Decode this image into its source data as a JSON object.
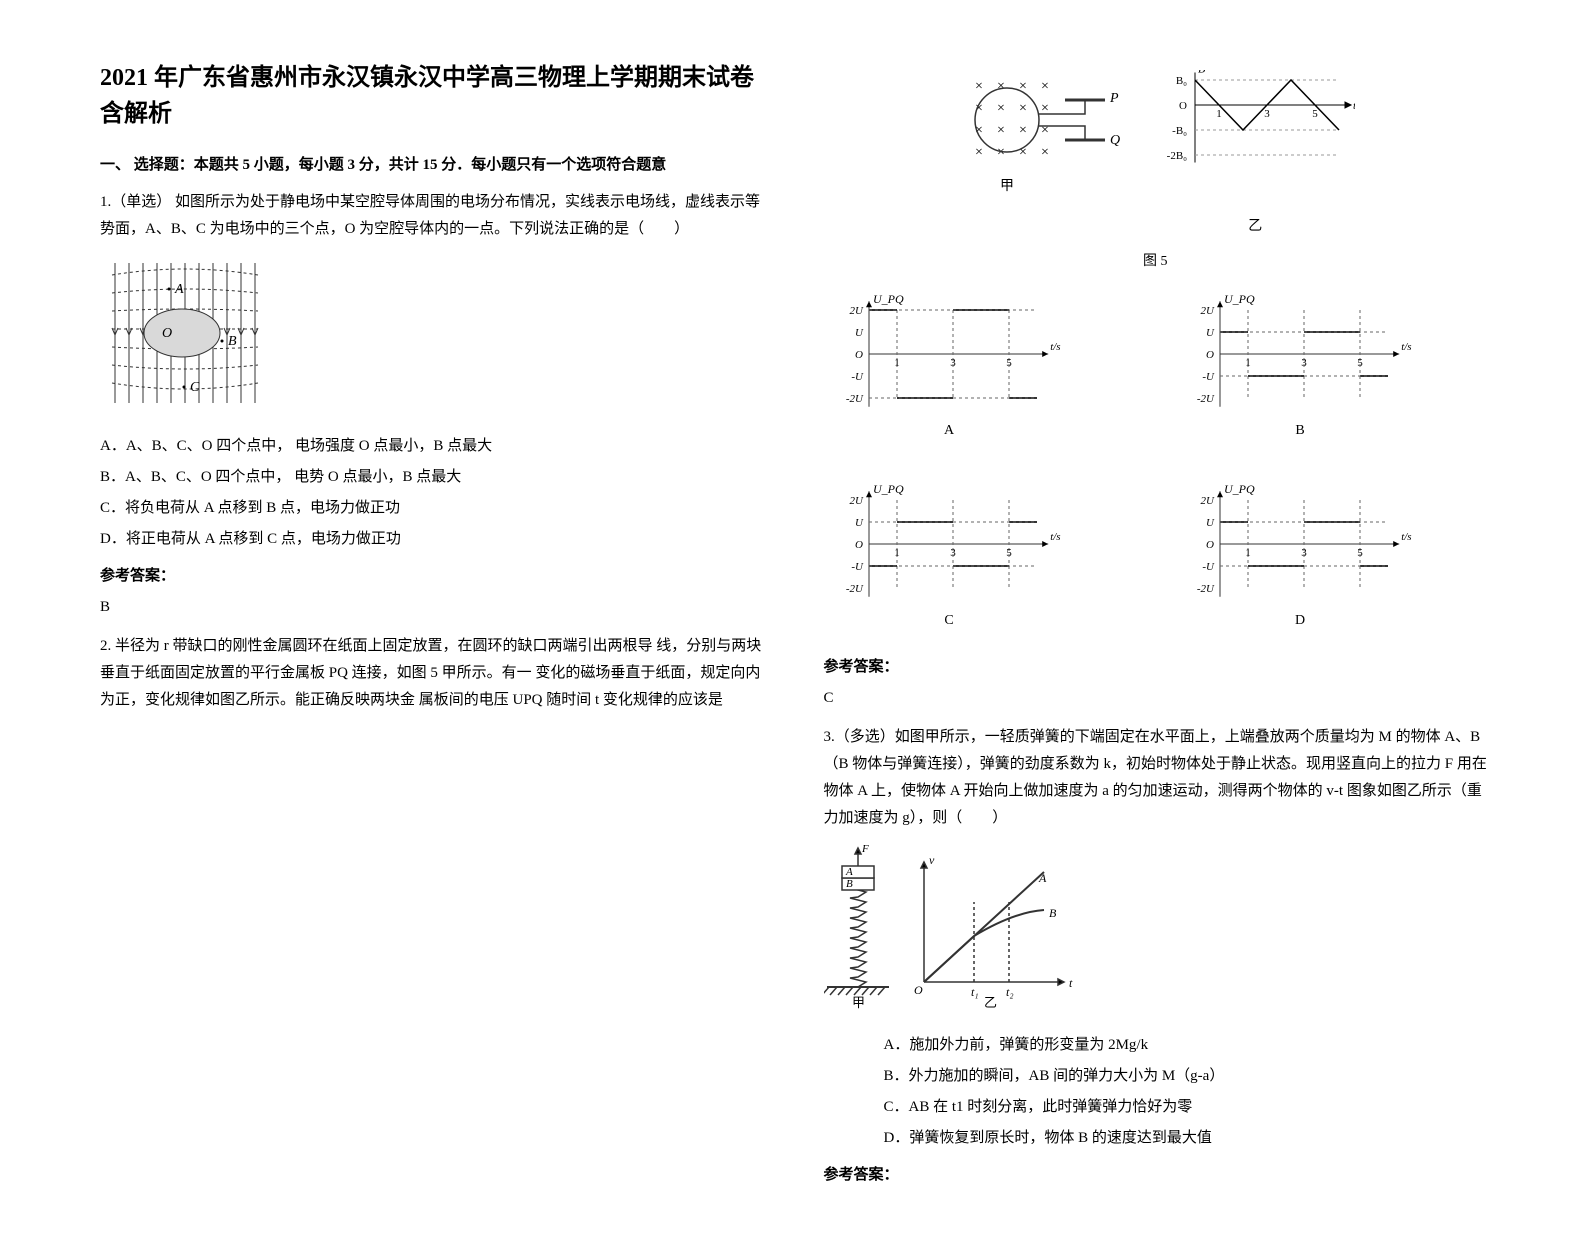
{
  "title": "2021 年广东省惠州市永汉镇永汉中学高三物理上学期期末试卷含解析",
  "section1_heading": "一、 选择题：本题共 5 小题，每小题 3 分，共计 15 分．每小题只有一个选项符合题意",
  "q1": {
    "prompt": "1.（单选） 如图所示为处于静电场中某空腔导体周围的电场分布情况，实线表示电场线，虚线表示等势面，A、B、C 为电场中的三个点，O 为空腔导体内的一点。下列说法正确的是（　　）",
    "optA": "A．A、B、C、O 四个点中， 电场强度 O 点最小，B 点最大",
    "optB": "B．A、B、C、O 四个点中， 电势 O 点最小，B 点最大",
    "optC": "C．将负电荷从 A 点移到 B 点，电场力做正功",
    "optD": "D．将正电荷从 A 点移到 C 点，电场力做正功",
    "answer_label": "参考答案：",
    "answer": "B"
  },
  "q2": {
    "prompt": "2. 半径为 r 带缺口的刚性金属圆环在纸面上固定放置，在圆环的缺口两端引出两根导 线，分别与两块垂直于纸面固定放置的平行金属板 PQ 连接，如图 5 甲所示。有一 变化的磁场垂直于纸面，规定向内为正，变化规律如图乙所示。能正确反映两块金 属板间的电压 UPQ 随时间 t 变化规律的应该是",
    "fig5_caption": "图 5",
    "answer_label": "参考答案：",
    "answer": "C"
  },
  "q3": {
    "prompt": "3.（多选）如图甲所示，一轻质弹簧的下端固定在水平面上，上端叠放两个质量均为 M 的物体 A、B（B 物体与弹簧连接），弹簧的劲度系数为 k，初始时物体处于静止状态。现用竖直向上的拉力 F 用在物体 A 上，使物体 A 开始向上做加速度为 a 的匀加速运动，测得两个物体的 v-t 图象如图乙所示（重力加速度为 g），则（　　）",
    "optA": "A．施加外力前，弹簧的形变量为 2Mg/k",
    "optB": "B．外力施加的瞬间，AB 间的弹力大小为 M（g-a）",
    "optC": "C．AB 在 t1 时刻分离，此时弹簧弹力恰好为零",
    "optD": "D．弹簧恢复到原长时，物体 B 的速度达到最大值",
    "fig_labels": {
      "jia": "甲",
      "yi": "乙"
    },
    "answer_label": "参考答案："
  },
  "charts": {
    "fig5_left": {
      "type": "diagram",
      "ring_x_symbols": "×",
      "plate_labels": [
        "P",
        "Q"
      ],
      "stroke": "#333333"
    },
    "fig5_right": {
      "type": "line",
      "ylabel_top": "B",
      "ylabels": [
        "B₀",
        "O",
        "-B₀",
        "-2B₀"
      ],
      "xticks": [
        "1",
        "3",
        "5"
      ],
      "xlabel": "t/s",
      "caption": "乙",
      "x_range": [
        0,
        6
      ],
      "y_range": [
        -2,
        1
      ],
      "points": [
        [
          0,
          1
        ],
        [
          1,
          0
        ],
        [
          2,
          -1
        ],
        [
          3,
          0
        ],
        [
          4,
          1
        ],
        [
          5,
          0
        ],
        [
          6,
          -1
        ]
      ],
      "grid_color": "#999999",
      "line_color": "#000000"
    },
    "upq_common": {
      "ylabel": "U_PQ",
      "yticks": [
        "2U",
        "U",
        "O",
        "-U",
        "-2U"
      ],
      "xticks": [
        "1",
        "3",
        "5"
      ],
      "xlabel": "t/s",
      "x_range": [
        0,
        6
      ],
      "y_range": [
        -2,
        2
      ],
      "stroke": "#333333",
      "dash_color": "#666666"
    },
    "upq_A": {
      "label": "A",
      "segments": [
        [
          [
            0,
            2
          ],
          [
            1,
            2
          ]
        ],
        [
          [
            1,
            -2
          ],
          [
            3,
            -2
          ]
        ],
        [
          [
            3,
            2
          ],
          [
            5,
            2
          ]
        ],
        [
          [
            5,
            -2
          ],
          [
            6,
            -2
          ]
        ]
      ]
    },
    "upq_B": {
      "label": "B",
      "segments": [
        [
          [
            0,
            1
          ],
          [
            1,
            1
          ]
        ],
        [
          [
            1,
            -1
          ],
          [
            3,
            -1
          ]
        ],
        [
          [
            3,
            1
          ],
          [
            5,
            1
          ]
        ],
        [
          [
            5,
            -1
          ],
          [
            6,
            -1
          ]
        ]
      ]
    },
    "upq_C": {
      "label": "C",
      "segments": [
        [
          [
            0,
            -1
          ],
          [
            1,
            -1
          ]
        ],
        [
          [
            1,
            1
          ],
          [
            3,
            1
          ]
        ],
        [
          [
            3,
            -1
          ],
          [
            5,
            -1
          ]
        ],
        [
          [
            5,
            1
          ],
          [
            6,
            1
          ]
        ]
      ]
    },
    "upq_D": {
      "label": "D",
      "segments": [
        [
          [
            0,
            1
          ],
          [
            1,
            1
          ]
        ],
        [
          [
            1,
            -1
          ],
          [
            3,
            -1
          ]
        ],
        [
          [
            3,
            1
          ],
          [
            5,
            1
          ]
        ],
        [
          [
            5,
            -1
          ],
          [
            6,
            -1
          ]
        ]
      ]
    },
    "q1_fig": {
      "type": "field-diagram",
      "labels": [
        "A",
        "B",
        "C",
        "O"
      ],
      "line_color": "#333333"
    },
    "q3_fig": {
      "labels": {
        "F": "F",
        "A": "A",
        "B": "B",
        "v": "v",
        "t1": "t₁",
        "t2": "t₂",
        "t": "t",
        "O": "O",
        "curveA": "A",
        "curveB": "B"
      },
      "stroke": "#333333",
      "spring_color": "#333333"
    }
  }
}
